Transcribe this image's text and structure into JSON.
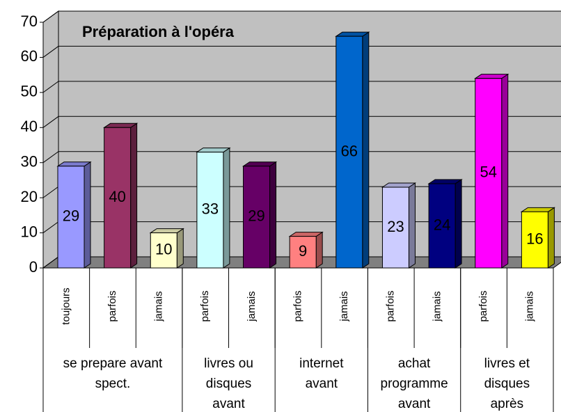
{
  "chart_data": {
    "type": "bar",
    "title": "Préparation à l'opéra",
    "categories": [
      "toujours",
      "parfois",
      "jamais",
      "parfois",
      "jamais",
      "parfois",
      "jamais",
      "parfois",
      "jamais",
      "parfois",
      "jamais"
    ],
    "groups": [
      {
        "lines": [
          "se prepare avant",
          "spect."
        ],
        "size": 3
      },
      {
        "lines": [
          "livres ou",
          "disques",
          "avant"
        ],
        "size": 2
      },
      {
        "lines": [
          "internet",
          "avant"
        ],
        "size": 2
      },
      {
        "lines": [
          "achat",
          "programme",
          "avant"
        ],
        "size": 2
      },
      {
        "lines": [
          "livres et",
          "disques",
          "après"
        ],
        "size": 2
      }
    ],
    "values": [
      29,
      40,
      10,
      33,
      29,
      9,
      66,
      23,
      24,
      54,
      16
    ],
    "colors": [
      "#9999ff",
      "#993366",
      "#ffffcc",
      "#ccffff",
      "#660066",
      "#ff8080",
      "#0066cc",
      "#ccccff",
      "#000080",
      "#ff00ff",
      "#ffff00"
    ],
    "ylim": [
      0,
      70
    ],
    "yticks": [
      0,
      10,
      20,
      30,
      40,
      50,
      60,
      70
    ],
    "grid": true
  }
}
